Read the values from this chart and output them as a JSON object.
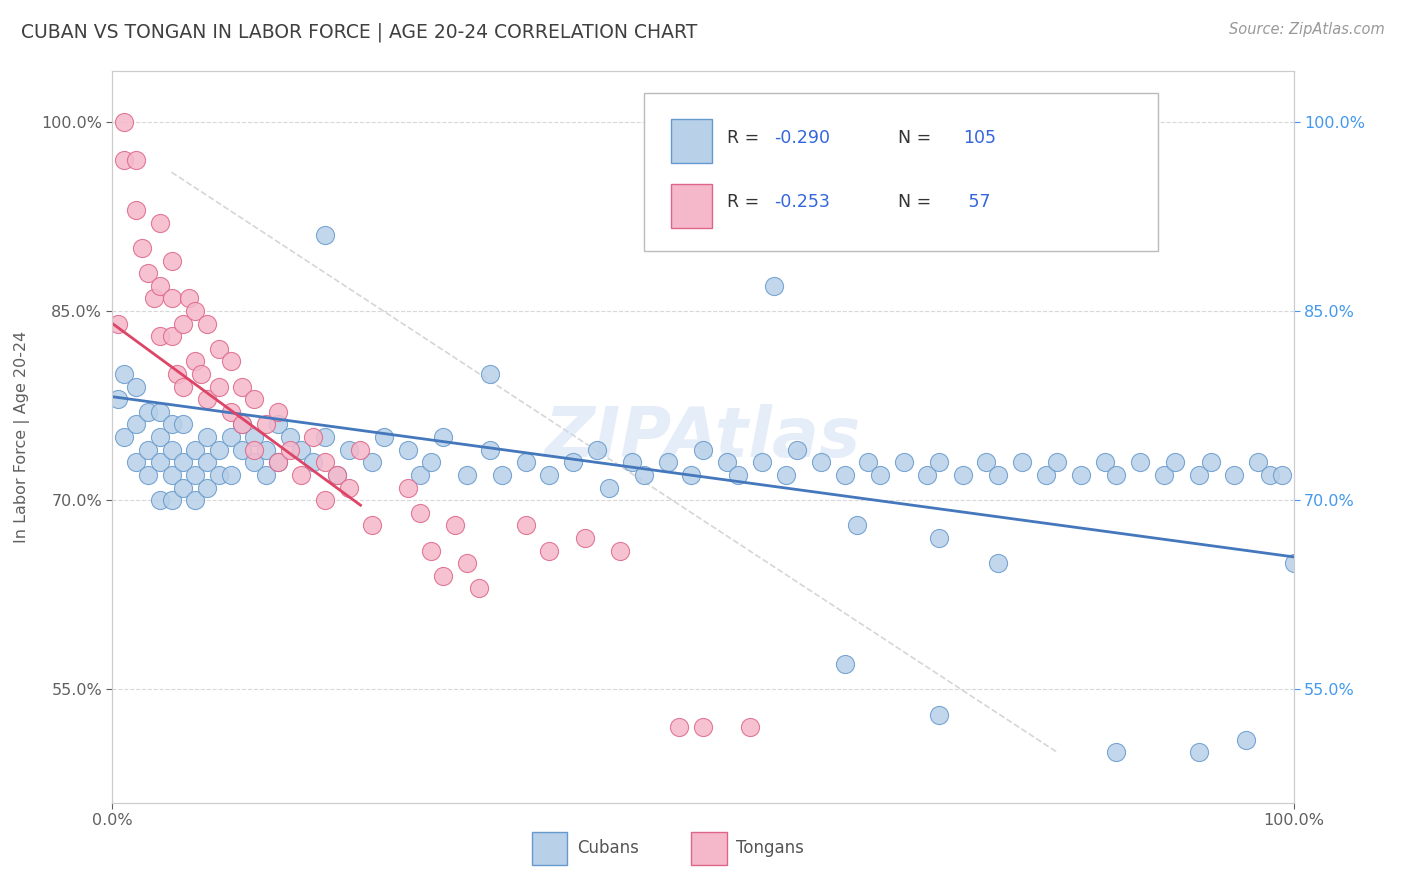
{
  "title": "CUBAN VS TONGAN IN LABOR FORCE | AGE 20-24 CORRELATION CHART",
  "source": "Source: ZipAtlas.com",
  "ylabel": "In Labor Force | Age 20-24",
  "xlim": [
    0.0,
    1.0
  ],
  "ylim": [
    0.46,
    1.04
  ],
  "ytick_values": [
    0.55,
    0.7,
    0.85,
    1.0
  ],
  "ytick_labels": [
    "55.0%",
    "70.0%",
    "85.0%",
    "100.0%"
  ],
  "xtick_values": [
    0.0,
    1.0
  ],
  "xtick_labels": [
    "0.0%",
    "100.0%"
  ],
  "cuban_color": "#b8d0e8",
  "tongan_color": "#f5b8cb",
  "cuban_edge_color": "#6699cc",
  "tongan_edge_color": "#dd6688",
  "cuban_line_color": "#4477bb",
  "tongan_line_color": "#dd4466",
  "diag_color": "#cccccc",
  "grid_color": "#d8d8d8",
  "right_tick_color": "#4499ee",
  "title_color": "#404040",
  "source_color": "#999999",
  "watermark": "ZIPAtlas",
  "cuban_R": "-0.290",
  "cuban_N": "105",
  "tongan_R": "-0.253",
  "tongan_N": "57",
  "cuban_x": [
    0.005,
    0.01,
    0.01,
    0.02,
    0.02,
    0.02,
    0.03,
    0.03,
    0.03,
    0.04,
    0.04,
    0.04,
    0.04,
    0.05,
    0.05,
    0.05,
    0.05,
    0.06,
    0.06,
    0.06,
    0.07,
    0.07,
    0.07,
    0.08,
    0.08,
    0.08,
    0.09,
    0.09,
    0.1,
    0.1,
    0.11,
    0.11,
    0.12,
    0.12,
    0.13,
    0.13,
    0.14,
    0.14,
    0.15,
    0.16,
    0.17,
    0.18,
    0.19,
    0.2,
    0.22,
    0.23,
    0.25,
    0.26,
    0.27,
    0.28,
    0.3,
    0.32,
    0.33,
    0.35,
    0.37,
    0.39,
    0.41,
    0.42,
    0.44,
    0.45,
    0.47,
    0.49,
    0.5,
    0.52,
    0.53,
    0.55,
    0.57,
    0.58,
    0.6,
    0.62,
    0.64,
    0.65,
    0.67,
    0.69,
    0.7,
    0.72,
    0.74,
    0.75,
    0.77,
    0.79,
    0.8,
    0.82,
    0.84,
    0.85,
    0.87,
    0.89,
    0.9,
    0.92,
    0.93,
    0.95,
    0.97,
    0.98,
    0.99,
    1.0,
    0.18,
    0.32,
    0.56,
    0.62,
    0.7,
    0.85,
    0.92,
    0.96,
    0.63,
    0.7,
    0.75
  ],
  "cuban_y": [
    0.78,
    0.8,
    0.75,
    0.76,
    0.73,
    0.79,
    0.74,
    0.77,
    0.72,
    0.75,
    0.73,
    0.7,
    0.77,
    0.74,
    0.72,
    0.76,
    0.7,
    0.73,
    0.76,
    0.71,
    0.74,
    0.72,
    0.7,
    0.73,
    0.75,
    0.71,
    0.74,
    0.72,
    0.75,
    0.72,
    0.74,
    0.76,
    0.73,
    0.75,
    0.74,
    0.72,
    0.76,
    0.73,
    0.75,
    0.74,
    0.73,
    0.75,
    0.72,
    0.74,
    0.73,
    0.75,
    0.74,
    0.72,
    0.73,
    0.75,
    0.72,
    0.74,
    0.72,
    0.73,
    0.72,
    0.73,
    0.74,
    0.71,
    0.73,
    0.72,
    0.73,
    0.72,
    0.74,
    0.73,
    0.72,
    0.73,
    0.72,
    0.74,
    0.73,
    0.72,
    0.73,
    0.72,
    0.73,
    0.72,
    0.73,
    0.72,
    0.73,
    0.72,
    0.73,
    0.72,
    0.73,
    0.72,
    0.73,
    0.72,
    0.73,
    0.72,
    0.73,
    0.72,
    0.73,
    0.72,
    0.73,
    0.72,
    0.72,
    0.65,
    0.91,
    0.8,
    0.87,
    0.57,
    0.53,
    0.5,
    0.5,
    0.51,
    0.68,
    0.67,
    0.65
  ],
  "tongan_x": [
    0.005,
    0.01,
    0.01,
    0.02,
    0.02,
    0.025,
    0.03,
    0.035,
    0.04,
    0.04,
    0.04,
    0.05,
    0.05,
    0.05,
    0.055,
    0.06,
    0.06,
    0.065,
    0.07,
    0.07,
    0.075,
    0.08,
    0.08,
    0.09,
    0.09,
    0.1,
    0.1,
    0.11,
    0.11,
    0.12,
    0.12,
    0.13,
    0.14,
    0.14,
    0.15,
    0.16,
    0.17,
    0.18,
    0.18,
    0.19,
    0.2,
    0.21,
    0.22,
    0.25,
    0.26,
    0.27,
    0.28,
    0.29,
    0.3,
    0.31,
    0.35,
    0.37,
    0.4,
    0.43,
    0.48,
    0.5,
    0.54
  ],
  "tongan_y": [
    0.84,
    1.0,
    0.97,
    0.97,
    0.93,
    0.9,
    0.88,
    0.86,
    0.92,
    0.87,
    0.83,
    0.86,
    0.89,
    0.83,
    0.8,
    0.84,
    0.79,
    0.86,
    0.81,
    0.85,
    0.8,
    0.84,
    0.78,
    0.82,
    0.79,
    0.81,
    0.77,
    0.79,
    0.76,
    0.78,
    0.74,
    0.76,
    0.73,
    0.77,
    0.74,
    0.72,
    0.75,
    0.73,
    0.7,
    0.72,
    0.71,
    0.74,
    0.68,
    0.71,
    0.69,
    0.66,
    0.64,
    0.68,
    0.65,
    0.63,
    0.68,
    0.66,
    0.67,
    0.66,
    0.52,
    0.52,
    0.52
  ]
}
